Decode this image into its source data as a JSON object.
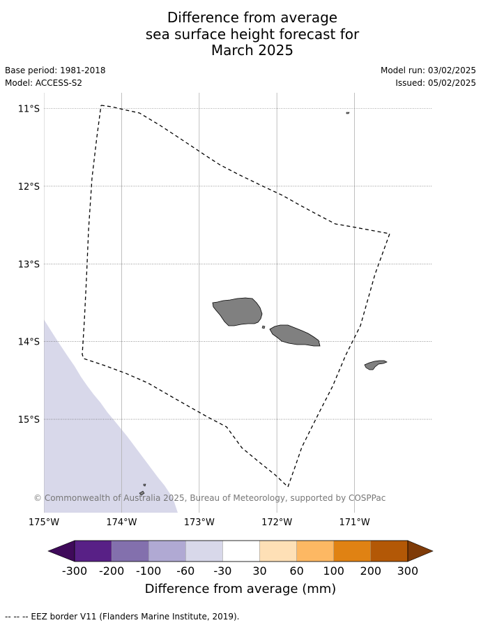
{
  "title": {
    "line1": "Difference from average",
    "line2": "sea surface height forecast for",
    "line3": "March 2025"
  },
  "meta": {
    "base_period": "Base period: 1981-2018",
    "model": "Model: ACCESS-S2",
    "model_run": "Model run: 03/02/2025",
    "issued": "Issued: 05/02/2025"
  },
  "map": {
    "lon_range": [
      -175,
      -170
    ],
    "lat_range": [
      -16.2,
      -10.8
    ],
    "lon_ticks": [
      {
        "value": -175,
        "label": "175°W"
      },
      {
        "value": -174,
        "label": "174°W"
      },
      {
        "value": -173,
        "label": "173°W"
      },
      {
        "value": -172,
        "label": "172°W"
      },
      {
        "value": -171,
        "label": "171°W"
      }
    ],
    "lat_ticks": [
      {
        "value": -11,
        "label": "11°S"
      },
      {
        "value": -12,
        "label": "12°S"
      },
      {
        "value": -13,
        "label": "13°S"
      },
      {
        "value": -14,
        "label": "14°S"
      },
      {
        "value": -15,
        "label": "15°S"
      }
    ],
    "anomaly_region_color": "#d8d8ea",
    "land_color": "#808080",
    "copyright": "© Commonwealth of Australia 2025, Bureau of Meteorology, supported by COSPPac"
  },
  "colorbar": {
    "title": "Difference from average (mm)",
    "colors": [
      "#3f0a5a",
      "#582086",
      "#8370ad",
      "#b0a9d3",
      "#d8d8ea",
      "#ffffff",
      "#fee0b6",
      "#fdb863",
      "#e08213",
      "#b35806",
      "#7f3b08"
    ],
    "labels": [
      "-300",
      "-200",
      "-100",
      "-60",
      "-30",
      "30",
      "60",
      "100",
      "200",
      "300"
    ]
  },
  "footer": "--  --  -- EEZ border V11 (Flanders Marine Institute, 2019)."
}
